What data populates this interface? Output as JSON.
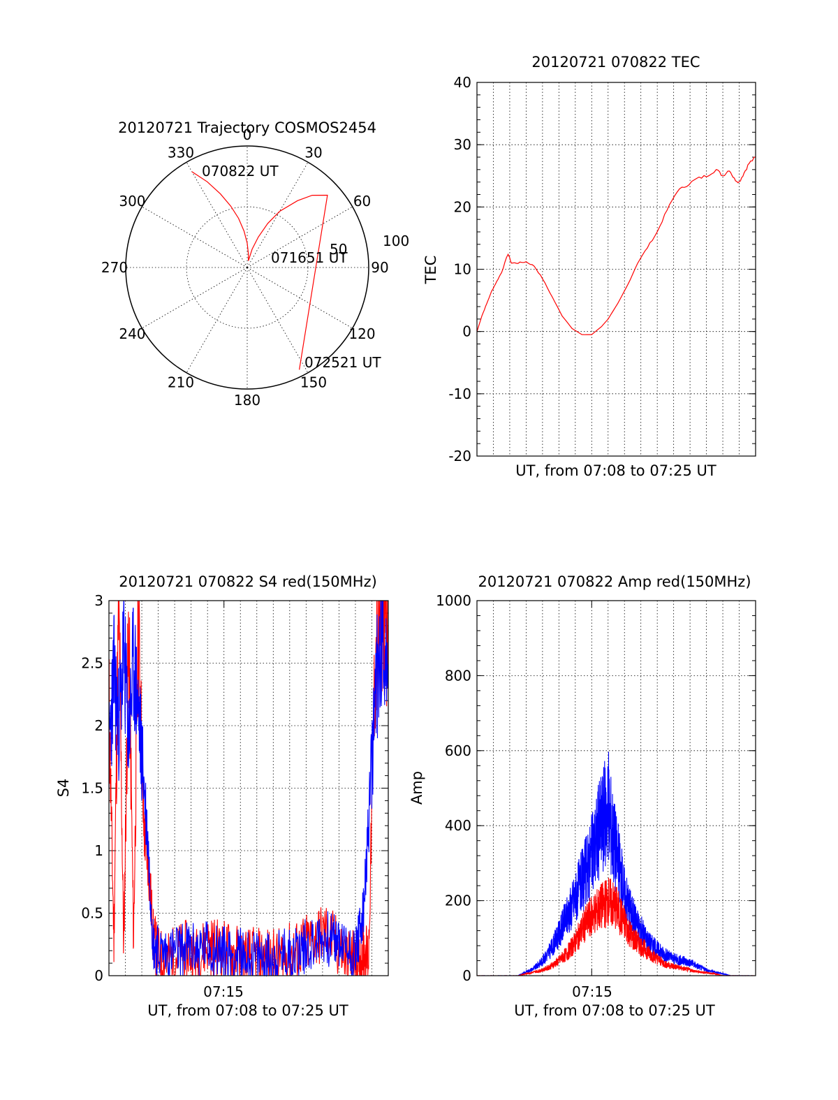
{
  "colors": {
    "red": "#ff0000",
    "blue": "#0000ff",
    "axis": "#000000"
  },
  "chart_data": [
    {
      "type": "polar",
      "title": "20120721 Trajectory COSMOS2454",
      "angle_labels": [
        "0",
        "30",
        "60",
        "90",
        "120",
        "150",
        "180",
        "210",
        "240",
        "270",
        "300",
        "330"
      ],
      "radius_labels": [
        "50",
        "100"
      ],
      "point_labels": [
        "070822 UT",
        "071651 UT",
        "072521 UT"
      ],
      "trajectory": {
        "azimuth_deg": [
          330,
          335,
          340,
          345,
          350,
          355,
          0,
          5,
          10,
          15,
          20,
          25,
          30,
          37,
          42,
          48,
          153
        ],
        "zenith_deg": [
          82,
          70,
          58,
          47,
          37,
          27,
          18,
          10,
          5,
          14,
          24,
          36,
          48,
          62,
          72,
          80,
          85
        ]
      }
    },
    {
      "type": "line",
      "title": "20120721 070822 TEC",
      "xlabel": "UT, from 07:08 to 07:25 UT",
      "ylabel": "TEC",
      "xlim": [
        0,
        17
      ],
      "ylim": [
        -20,
        40
      ],
      "yticks": [
        "-20",
        "-10",
        "0",
        "10",
        "20",
        "30",
        "40"
      ],
      "grid": true,
      "series": [
        {
          "color": "red",
          "x": [
            0.0,
            0.3,
            0.6,
            0.9,
            1.2,
            1.5,
            1.9,
            2.1,
            2.5,
            3.0,
            3.5,
            4.0,
            4.6,
            5.2,
            5.8,
            6.4,
            7.0,
            7.6,
            8.0,
            8.6,
            9.2,
            9.8,
            10.4,
            11.0,
            11.6,
            12.2,
            12.8,
            13.4,
            14.0,
            14.6,
            15.0,
            15.4,
            15.7,
            16.0,
            16.3,
            16.6,
            17.0
          ],
          "y": [
            0,
            2.5,
            4.5,
            6.5,
            8,
            9.5,
            12.5,
            11,
            11,
            11.2,
            10.5,
            8.5,
            5.5,
            2.5,
            0.5,
            -0.5,
            -0.5,
            0.8,
            2,
            4.5,
            7.5,
            11,
            13.5,
            16,
            19.5,
            22.5,
            23.5,
            24.5,
            25,
            26,
            25,
            26,
            24.5,
            24,
            25.5,
            27,
            28
          ]
        }
      ]
    },
    {
      "type": "line",
      "title": "20120721 070822 S4 red(150MHz)",
      "xlabel": "UT, from 07:08 to 07:25 UT",
      "ylabel": "S4",
      "xlim": [
        0,
        17
      ],
      "ylim": [
        0,
        3
      ],
      "xticks": [
        "07:15"
      ],
      "yticks": [
        "0",
        "0.5",
        "1",
        "1.5",
        "2",
        "2.5",
        "3"
      ],
      "grid": true,
      "series": [
        {
          "color": "red",
          "x": [
            0.0,
            0.3,
            0.6,
            0.9,
            1.2,
            1.5,
            1.8,
            2.1,
            2.4,
            2.7,
            3.0,
            3.6,
            4.2,
            4.8,
            5.4,
            6.0,
            6.6,
            7.2,
            7.8,
            8.4,
            9.0,
            9.6,
            10.2,
            10.8,
            11.4,
            12.0,
            12.6,
            13.2,
            13.8,
            14.4,
            14.9,
            15.2,
            15.5,
            15.8,
            16.2,
            16.6,
            17.0
          ],
          "y": [
            2.2,
            0.3,
            3.0,
            0.2,
            2.8,
            0.3,
            2.9,
            1.2,
            0.9,
            0.3,
            0.15,
            0.12,
            0.18,
            0.2,
            0.15,
            0.25,
            0.22,
            0.2,
            0.17,
            0.15,
            0.14,
            0.15,
            0.13,
            0.17,
            0.2,
            0.25,
            0.3,
            0.35,
            0.25,
            0.15,
            0.12,
            0.12,
            0.2,
            0.15,
            2.5,
            3.0,
            2.8
          ]
        },
        {
          "color": "blue",
          "x": [
            0.0,
            0.3,
            0.6,
            0.9,
            1.2,
            1.5,
            1.8,
            2.1,
            2.4,
            2.7,
            3.0,
            3.6,
            4.2,
            4.8,
            5.4,
            6.0,
            6.6,
            7.2,
            7.8,
            8.4,
            9.0,
            9.6,
            10.2,
            10.8,
            11.4,
            12.0,
            12.6,
            13.2,
            13.8,
            14.4,
            14.9,
            15.2,
            15.5,
            15.8,
            16.2,
            16.6,
            17.0
          ],
          "y": [
            1.8,
            2.4,
            2.0,
            2.6,
            1.9,
            2.5,
            2.1,
            1.6,
            1.0,
            0.25,
            0.2,
            0.18,
            0.2,
            0.22,
            0.2,
            0.24,
            0.2,
            0.18,
            0.16,
            0.15,
            0.14,
            0.13,
            0.15,
            0.17,
            0.2,
            0.24,
            0.28,
            0.3,
            0.28,
            0.22,
            0.18,
            0.3,
            0.5,
            1.2,
            2.2,
            2.8,
            2.5
          ]
        }
      ]
    },
    {
      "type": "line",
      "title": "20120721 070822 Amp red(150MHz)",
      "xlabel": "UT, from 07:08 to 07:25 UT",
      "ylabel": "Amp",
      "xlim": [
        0,
        17
      ],
      "ylim": [
        0,
        1000
      ],
      "xticks": [
        "07:15"
      ],
      "yticks": [
        "0",
        "200",
        "400",
        "600",
        "800",
        "1000"
      ],
      "grid": true,
      "series": [
        {
          "color": "red",
          "x": [
            0.0,
            2.5,
            3.0,
            3.5,
            4.0,
            4.5,
            5.0,
            5.5,
            6.0,
            6.5,
            7.0,
            7.5,
            8.0,
            8.5,
            9.0,
            9.5,
            10.0,
            10.5,
            11.0,
            11.5,
            12.0,
            12.5,
            13.0,
            13.5,
            14.0,
            14.5,
            15.0,
            15.5,
            16.0,
            17.0
          ],
          "y": [
            0,
            0,
            5,
            10,
            15,
            25,
            40,
            60,
            90,
            130,
            160,
            180,
            200,
            180,
            140,
            100,
            80,
            60,
            45,
            30,
            25,
            20,
            15,
            10,
            8,
            5,
            0,
            0,
            0,
            0
          ]
        },
        {
          "color": "blue",
          "x": [
            0.0,
            2.5,
            3.0,
            3.5,
            4.0,
            4.5,
            5.0,
            5.5,
            6.0,
            6.5,
            7.0,
            7.5,
            8.0,
            8.5,
            9.0,
            9.5,
            10.0,
            10.5,
            11.0,
            11.5,
            12.0,
            12.5,
            13.0,
            13.5,
            14.0,
            14.5,
            15.0,
            15.5,
            16.0,
            17.0
          ],
          "y": [
            0,
            0,
            10,
            20,
            40,
            70,
            110,
            160,
            210,
            260,
            320,
            400,
            450,
            330,
            220,
            160,
            120,
            90,
            70,
            55,
            45,
            40,
            35,
            25,
            15,
            10,
            5,
            0,
            0,
            0
          ]
        }
      ]
    }
  ]
}
